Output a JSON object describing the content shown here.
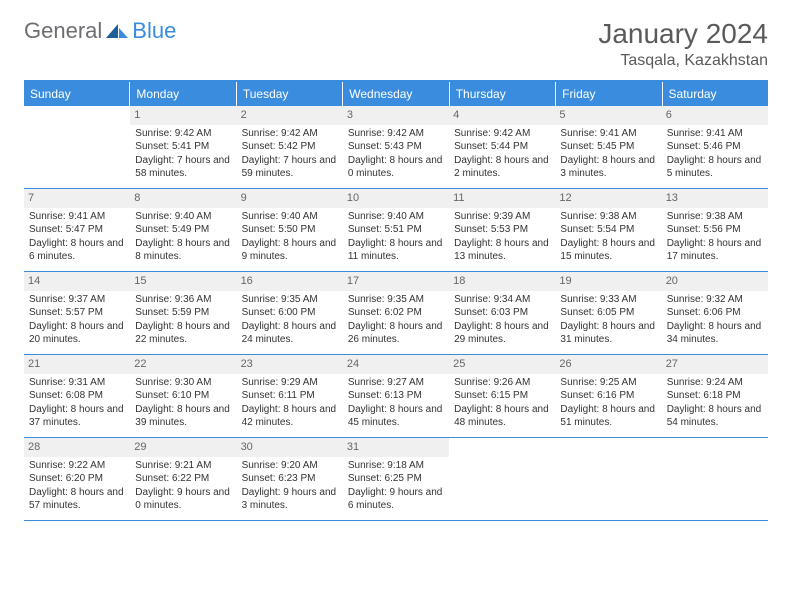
{
  "logo": {
    "general": "General",
    "blue": "Blue"
  },
  "title": "January 2024",
  "location": "Tasqala, Kazakhstan",
  "colors": {
    "accent": "#3a8dde",
    "day_header_bg": "#f0f0f0",
    "text": "#333333",
    "logo_gray": "#6d6e71"
  },
  "days_of_week": [
    "Sunday",
    "Monday",
    "Tuesday",
    "Wednesday",
    "Thursday",
    "Friday",
    "Saturday"
  ],
  "weeks": [
    [
      null,
      {
        "n": "1",
        "sr": "Sunrise: 9:42 AM",
        "ss": "Sunset: 5:41 PM",
        "dl": "Daylight: 7 hours and 58 minutes."
      },
      {
        "n": "2",
        "sr": "Sunrise: 9:42 AM",
        "ss": "Sunset: 5:42 PM",
        "dl": "Daylight: 7 hours and 59 minutes."
      },
      {
        "n": "3",
        "sr": "Sunrise: 9:42 AM",
        "ss": "Sunset: 5:43 PM",
        "dl": "Daylight: 8 hours and 0 minutes."
      },
      {
        "n": "4",
        "sr": "Sunrise: 9:42 AM",
        "ss": "Sunset: 5:44 PM",
        "dl": "Daylight: 8 hours and 2 minutes."
      },
      {
        "n": "5",
        "sr": "Sunrise: 9:41 AM",
        "ss": "Sunset: 5:45 PM",
        "dl": "Daylight: 8 hours and 3 minutes."
      },
      {
        "n": "6",
        "sr": "Sunrise: 9:41 AM",
        "ss": "Sunset: 5:46 PM",
        "dl": "Daylight: 8 hours and 5 minutes."
      }
    ],
    [
      {
        "n": "7",
        "sr": "Sunrise: 9:41 AM",
        "ss": "Sunset: 5:47 PM",
        "dl": "Daylight: 8 hours and 6 minutes."
      },
      {
        "n": "8",
        "sr": "Sunrise: 9:40 AM",
        "ss": "Sunset: 5:49 PM",
        "dl": "Daylight: 8 hours and 8 minutes."
      },
      {
        "n": "9",
        "sr": "Sunrise: 9:40 AM",
        "ss": "Sunset: 5:50 PM",
        "dl": "Daylight: 8 hours and 9 minutes."
      },
      {
        "n": "10",
        "sr": "Sunrise: 9:40 AM",
        "ss": "Sunset: 5:51 PM",
        "dl": "Daylight: 8 hours and 11 minutes."
      },
      {
        "n": "11",
        "sr": "Sunrise: 9:39 AM",
        "ss": "Sunset: 5:53 PM",
        "dl": "Daylight: 8 hours and 13 minutes."
      },
      {
        "n": "12",
        "sr": "Sunrise: 9:38 AM",
        "ss": "Sunset: 5:54 PM",
        "dl": "Daylight: 8 hours and 15 minutes."
      },
      {
        "n": "13",
        "sr": "Sunrise: 9:38 AM",
        "ss": "Sunset: 5:56 PM",
        "dl": "Daylight: 8 hours and 17 minutes."
      }
    ],
    [
      {
        "n": "14",
        "sr": "Sunrise: 9:37 AM",
        "ss": "Sunset: 5:57 PM",
        "dl": "Daylight: 8 hours and 20 minutes."
      },
      {
        "n": "15",
        "sr": "Sunrise: 9:36 AM",
        "ss": "Sunset: 5:59 PM",
        "dl": "Daylight: 8 hours and 22 minutes."
      },
      {
        "n": "16",
        "sr": "Sunrise: 9:35 AM",
        "ss": "Sunset: 6:00 PM",
        "dl": "Daylight: 8 hours and 24 minutes."
      },
      {
        "n": "17",
        "sr": "Sunrise: 9:35 AM",
        "ss": "Sunset: 6:02 PM",
        "dl": "Daylight: 8 hours and 26 minutes."
      },
      {
        "n": "18",
        "sr": "Sunrise: 9:34 AM",
        "ss": "Sunset: 6:03 PM",
        "dl": "Daylight: 8 hours and 29 minutes."
      },
      {
        "n": "19",
        "sr": "Sunrise: 9:33 AM",
        "ss": "Sunset: 6:05 PM",
        "dl": "Daylight: 8 hours and 31 minutes."
      },
      {
        "n": "20",
        "sr": "Sunrise: 9:32 AM",
        "ss": "Sunset: 6:06 PM",
        "dl": "Daylight: 8 hours and 34 minutes."
      }
    ],
    [
      {
        "n": "21",
        "sr": "Sunrise: 9:31 AM",
        "ss": "Sunset: 6:08 PM",
        "dl": "Daylight: 8 hours and 37 minutes."
      },
      {
        "n": "22",
        "sr": "Sunrise: 9:30 AM",
        "ss": "Sunset: 6:10 PM",
        "dl": "Daylight: 8 hours and 39 minutes."
      },
      {
        "n": "23",
        "sr": "Sunrise: 9:29 AM",
        "ss": "Sunset: 6:11 PM",
        "dl": "Daylight: 8 hours and 42 minutes."
      },
      {
        "n": "24",
        "sr": "Sunrise: 9:27 AM",
        "ss": "Sunset: 6:13 PM",
        "dl": "Daylight: 8 hours and 45 minutes."
      },
      {
        "n": "25",
        "sr": "Sunrise: 9:26 AM",
        "ss": "Sunset: 6:15 PM",
        "dl": "Daylight: 8 hours and 48 minutes."
      },
      {
        "n": "26",
        "sr": "Sunrise: 9:25 AM",
        "ss": "Sunset: 6:16 PM",
        "dl": "Daylight: 8 hours and 51 minutes."
      },
      {
        "n": "27",
        "sr": "Sunrise: 9:24 AM",
        "ss": "Sunset: 6:18 PM",
        "dl": "Daylight: 8 hours and 54 minutes."
      }
    ],
    [
      {
        "n": "28",
        "sr": "Sunrise: 9:22 AM",
        "ss": "Sunset: 6:20 PM",
        "dl": "Daylight: 8 hours and 57 minutes."
      },
      {
        "n": "29",
        "sr": "Sunrise: 9:21 AM",
        "ss": "Sunset: 6:22 PM",
        "dl": "Daylight: 9 hours and 0 minutes."
      },
      {
        "n": "30",
        "sr": "Sunrise: 9:20 AM",
        "ss": "Sunset: 6:23 PM",
        "dl": "Daylight: 9 hours and 3 minutes."
      },
      {
        "n": "31",
        "sr": "Sunrise: 9:18 AM",
        "ss": "Sunset: 6:25 PM",
        "dl": "Daylight: 9 hours and 6 minutes."
      },
      null,
      null,
      null
    ]
  ]
}
